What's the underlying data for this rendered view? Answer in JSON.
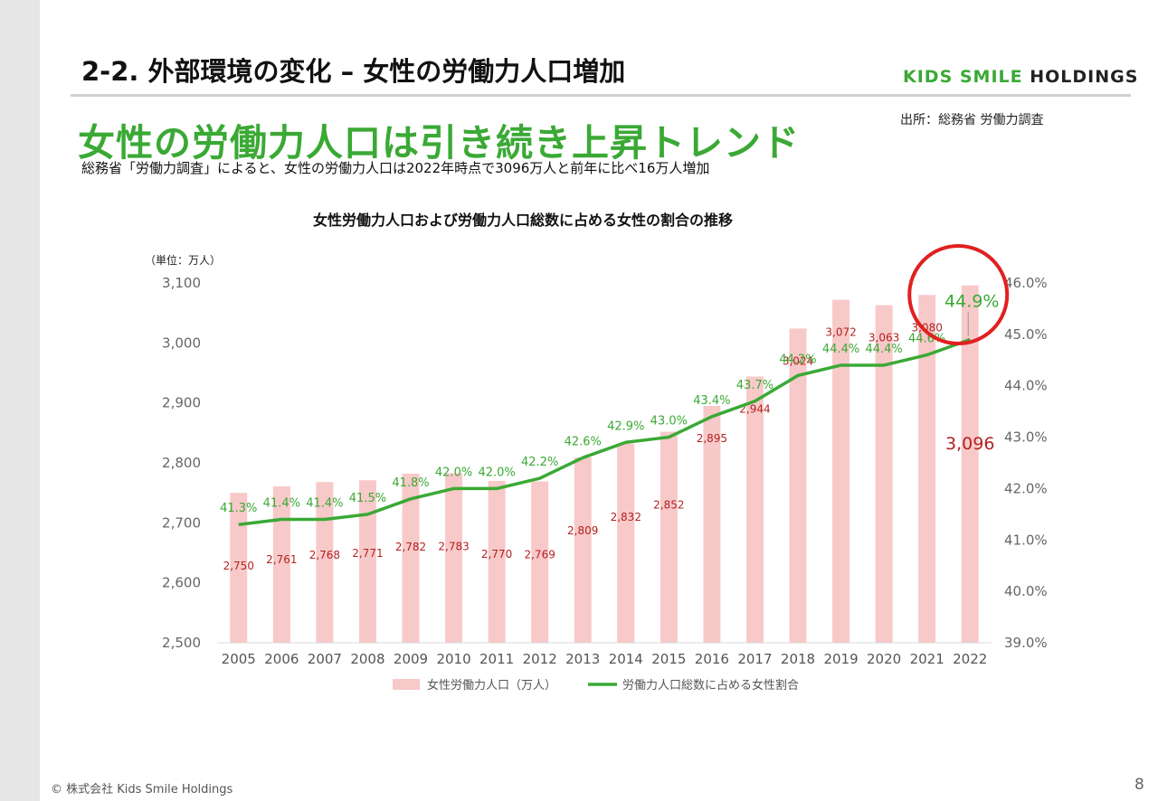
{
  "header": {
    "title": "2-2. 外部環境の変化 – 女性の労働力人口増加",
    "brand_part1": "KIDS SMILE",
    "brand_part2": " HOLDINGS"
  },
  "source": "出所：総務省 労働力調査",
  "headline": "女性の労働力人口は引き続き上昇トレンド",
  "subtext": "総務省「労働力調査」によると、女性の労働力人口は2022年時点で3096万人と前年に比べ16万人増加",
  "footer": "© 株式会社 Kids Smile Holdings",
  "page_number": "8",
  "colors": {
    "bar": "#f8c9c9",
    "line": "#3aa935",
    "bar_label": "#b22222",
    "highlight_circle": "#e0201f",
    "brand_green": "#3aa935"
  },
  "chart_data": {
    "type": "bar",
    "title": "女性労働力人口および労働力人口総数に占める女性の割合の推移",
    "unit_label": "（単位：万人）",
    "categories": [
      "2005",
      "2006",
      "2007",
      "2008",
      "2009",
      "2010",
      "2011",
      "2012",
      "2013",
      "2014",
      "2015",
      "2016",
      "2017",
      "2018",
      "2019",
      "2020",
      "2021",
      "2022"
    ],
    "series": [
      {
        "name": "女性労働力人口（万人）",
        "type": "bar",
        "axis": "left",
        "values": [
          2750,
          2761,
          2768,
          2771,
          2782,
          2783,
          2770,
          2769,
          2809,
          2832,
          2852,
          2895,
          2944,
          3024,
          3072,
          3063,
          3080,
          3096
        ],
        "labels": [
          "2,750",
          "2,761",
          "2,768",
          "2,771",
          "2,782",
          "2,783",
          "2,770",
          "2,769",
          "2,809",
          "2,832",
          "2,852",
          "2,895",
          "2,944",
          "3,024",
          "3,072",
          "3,063",
          "3,080",
          "3,096"
        ]
      },
      {
        "name": "労働力人口総数に占める女性割合",
        "type": "line",
        "axis": "right",
        "values": [
          41.3,
          41.4,
          41.4,
          41.5,
          41.8,
          42.0,
          42.0,
          42.2,
          42.6,
          42.9,
          43.0,
          43.4,
          43.7,
          44.2,
          44.4,
          44.4,
          44.6,
          44.9
        ],
        "labels": [
          "41.3%",
          "41.4%",
          "41.4%",
          "41.5%",
          "41.8%",
          "42.0%",
          "42.0%",
          "42.2%",
          "42.6%",
          "42.9%",
          "43.0%",
          "43.4%",
          "43.7%",
          "44.2%",
          "44.4%",
          "44.4%",
          "44.6%",
          "44.9%"
        ]
      }
    ],
    "y_left": {
      "min": 2500,
      "max": 3100,
      "ticks": [
        "2,500",
        "2,600",
        "2,700",
        "2,800",
        "2,900",
        "3,000",
        "3,100"
      ],
      "tick_values": [
        2500,
        2600,
        2700,
        2800,
        2900,
        3000,
        3100
      ]
    },
    "y_right": {
      "min": 39.0,
      "max": 46.0,
      "ticks": [
        "39.0%",
        "40.0%",
        "41.0%",
        "42.0%",
        "43.0%",
        "44.0%",
        "45.0%",
        "46.0%"
      ],
      "tick_values": [
        39,
        40,
        41,
        42,
        43,
        44,
        45,
        46
      ]
    },
    "highlight": {
      "category": "2022",
      "note": "last year emphasized with red circle and enlarged labels"
    },
    "legend_position": "bottom",
    "grid": false
  }
}
